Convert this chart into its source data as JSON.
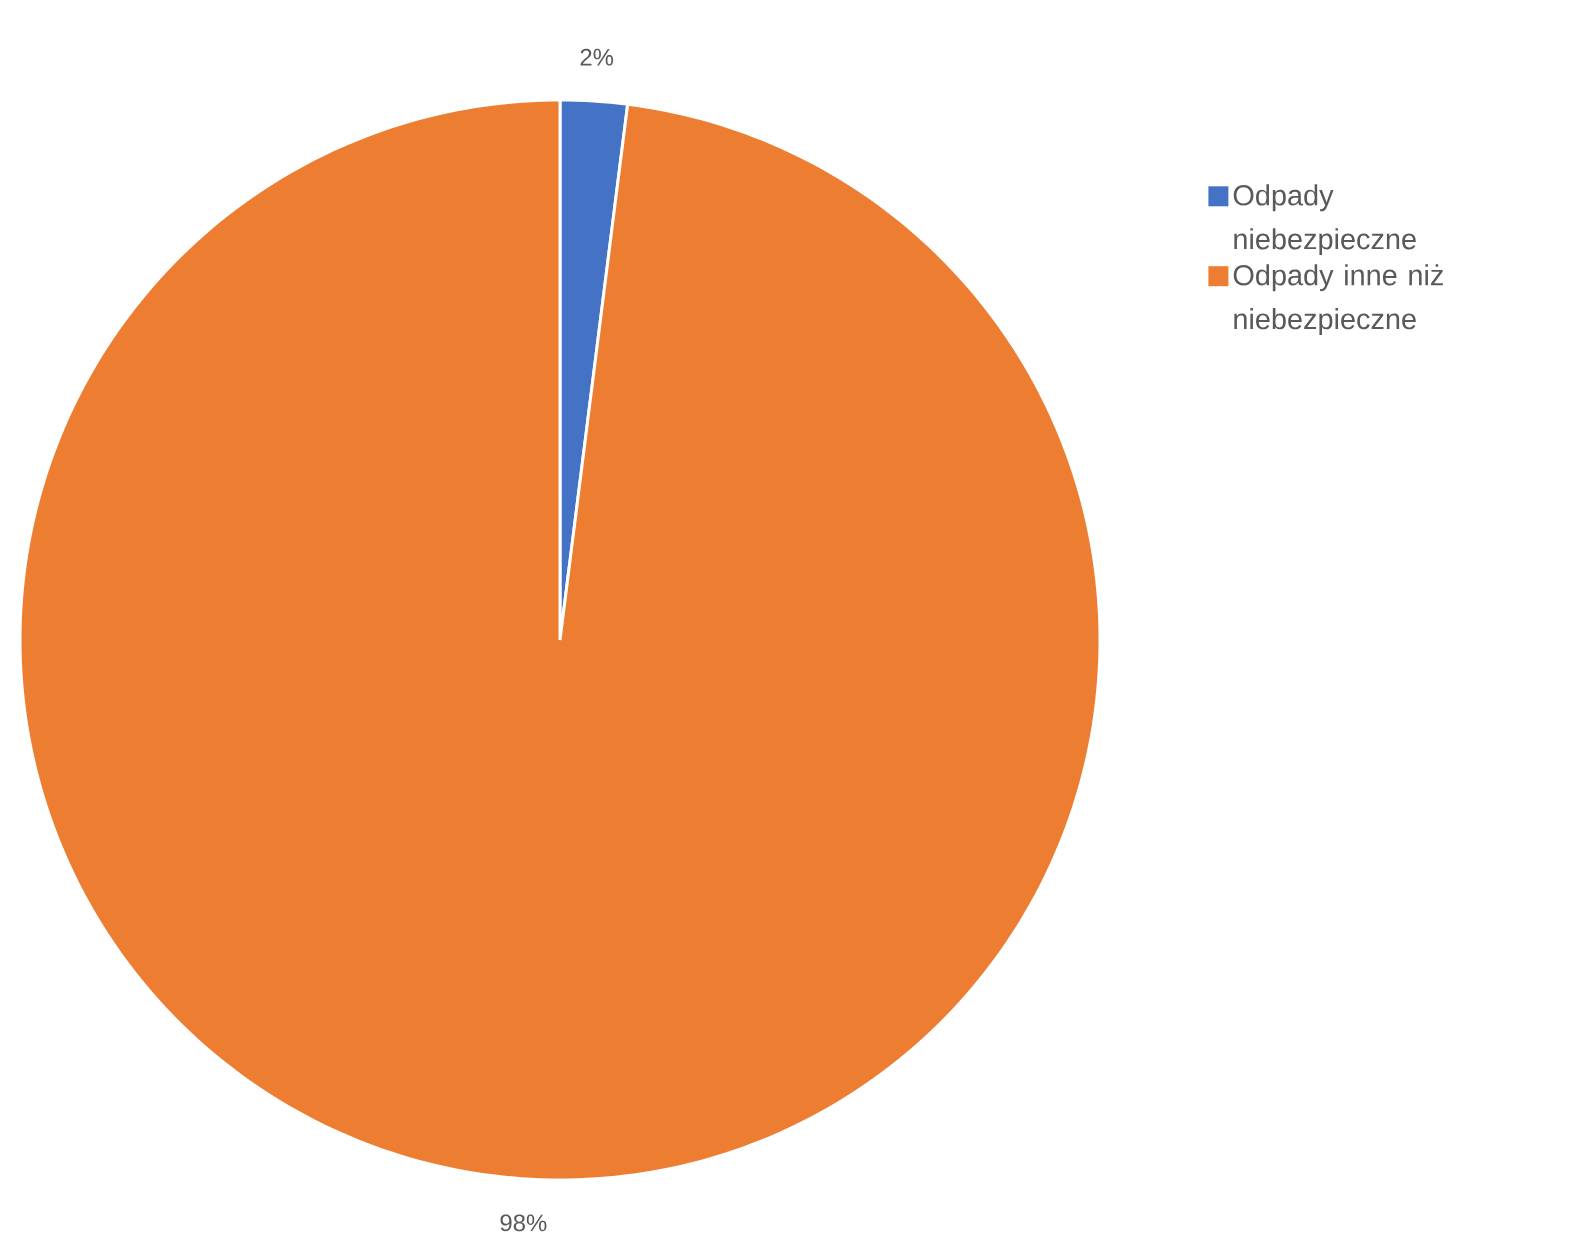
{
  "chart_data": {
    "type": "pie",
    "categories": [
      "Odpady niebezpieczne",
      "Odpady inne niż niebezpieczne"
    ],
    "values": [
      2,
      98
    ],
    "colors": [
      "#4472c4",
      "#ed7d31"
    ],
    "value_labels": [
      "2%",
      "98%"
    ],
    "legend": "right"
  }
}
